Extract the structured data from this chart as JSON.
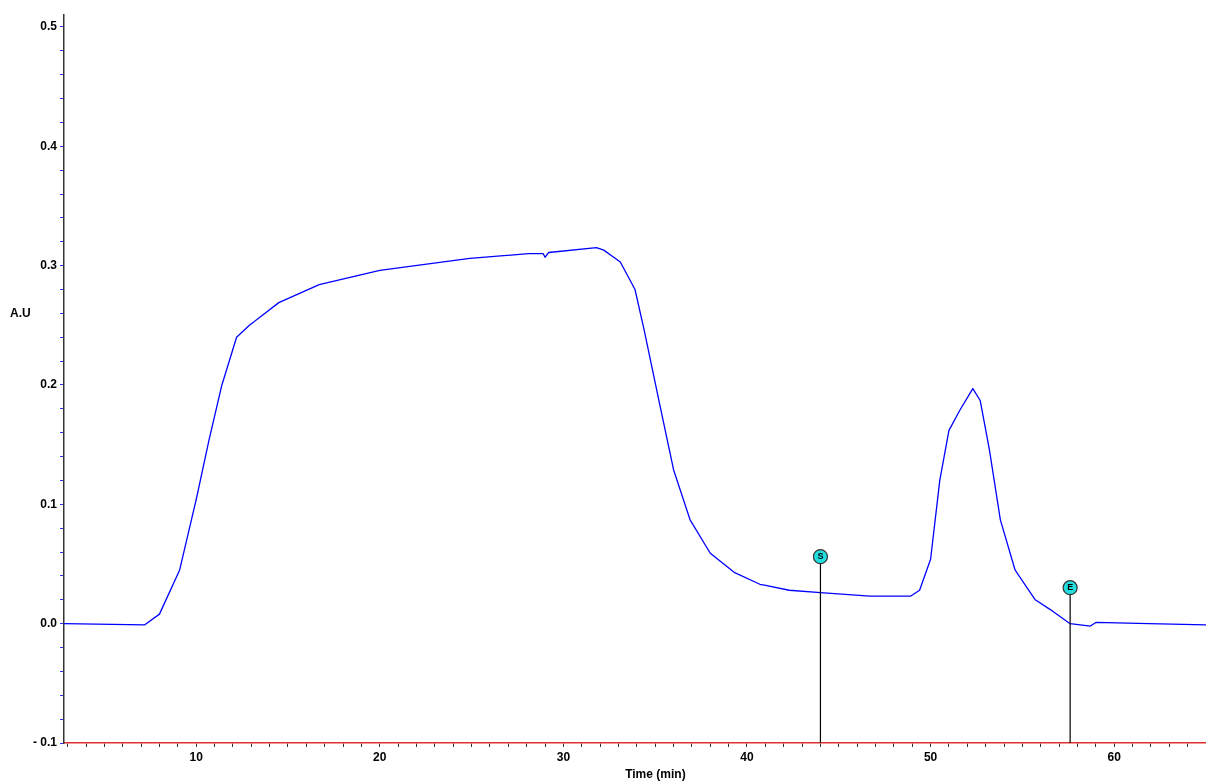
{
  "chart_data": {
    "type": "line",
    "xlabel": "Time (min)",
    "ylabel": "A.U",
    "xlim": [
      2.8,
      65
    ],
    "ylim": [
      -0.1,
      0.51
    ],
    "xticks": [
      {
        "value": 3,
        "label": null
      },
      {
        "value": 4,
        "label": null
      },
      {
        "value": 5,
        "label": null
      },
      {
        "value": 6,
        "label": null
      },
      {
        "value": 7,
        "label": null
      },
      {
        "value": 8,
        "label": null
      },
      {
        "value": 9,
        "label": null
      },
      10,
      {
        "value": 11,
        "label": null
      },
      {
        "value": 12,
        "label": null
      },
      {
        "value": 13,
        "label": null
      },
      {
        "value": 14,
        "label": null
      },
      {
        "value": 15,
        "label": null
      },
      {
        "value": 16,
        "label": null
      },
      {
        "value": 17,
        "label": null
      },
      {
        "value": 18,
        "label": null
      },
      {
        "value": 19,
        "label": null
      },
      20,
      {
        "value": 21,
        "label": null
      },
      {
        "value": 22,
        "label": null
      },
      {
        "value": 23,
        "label": null
      },
      {
        "value": 24,
        "label": null
      },
      {
        "value": 25,
        "label": null
      },
      {
        "value": 26,
        "label": null
      },
      {
        "value": 27,
        "label": null
      },
      {
        "value": 28,
        "label": null
      },
      {
        "value": 29,
        "label": null
      },
      30,
      {
        "value": 31,
        "label": null
      },
      {
        "value": 32,
        "label": null
      },
      {
        "value": 33,
        "label": null
      },
      {
        "value": 34,
        "label": null
      },
      {
        "value": 35,
        "label": null
      },
      {
        "value": 36,
        "label": null
      },
      {
        "value": 37,
        "label": null
      },
      {
        "value": 38,
        "label": null
      },
      {
        "value": 39,
        "label": null
      },
      40,
      {
        "value": 41,
        "label": null
      },
      {
        "value": 42,
        "label": null
      },
      {
        "value": 43,
        "label": null
      },
      {
        "value": 44,
        "label": null
      },
      {
        "value": 45,
        "label": null
      },
      {
        "value": 46,
        "label": null
      },
      {
        "value": 47,
        "label": null
      },
      {
        "value": 48,
        "label": null
      },
      {
        "value": 49,
        "label": null
      },
      50,
      {
        "value": 51,
        "label": null
      },
      {
        "value": 52,
        "label": null
      },
      {
        "value": 53,
        "label": null
      },
      {
        "value": 54,
        "label": null
      },
      {
        "value": 55,
        "label": null
      },
      {
        "value": 56,
        "label": null
      },
      {
        "value": 57,
        "label": null
      },
      {
        "value": 58,
        "label": null
      },
      {
        "value": 59,
        "label": null
      },
      60,
      {
        "value": 61,
        "label": null
      },
      {
        "value": 62,
        "label": null
      },
      {
        "value": 63,
        "label": null
      },
      {
        "value": 64,
        "label": null
      }
    ],
    "yticks": [
      {
        "value": -0.1,
        "label": "- 0.1"
      },
      {
        "value": -0.08,
        "label": null
      },
      {
        "value": -0.06,
        "label": null
      },
      {
        "value": -0.04,
        "label": null
      },
      {
        "value": -0.02,
        "label": null
      },
      {
        "value": 0,
        "label": "0.0"
      },
      {
        "value": 0.02,
        "label": null
      },
      {
        "value": 0.04,
        "label": null
      },
      {
        "value": 0.06,
        "label": null
      },
      {
        "value": 0.08,
        "label": null
      },
      0.1,
      {
        "value": 0.12,
        "label": null
      },
      {
        "value": 0.14,
        "label": null
      },
      {
        "value": 0.16,
        "label": null
      },
      {
        "value": 0.18,
        "label": null
      },
      0.2,
      {
        "value": 0.22,
        "label": null
      },
      {
        "value": 0.24,
        "label": null
      },
      {
        "value": 0.26,
        "label": null
      },
      {
        "value": 0.28,
        "label": null
      },
      0.3,
      {
        "value": 0.32,
        "label": null
      },
      {
        "value": 0.34,
        "label": null
      },
      {
        "value": 0.36,
        "label": null
      },
      {
        "value": 0.38,
        "label": null
      },
      0.4,
      {
        "value": 0.42,
        "label": null
      },
      {
        "value": 0.44,
        "label": null
      },
      {
        "value": 0.46,
        "label": null
      },
      {
        "value": 0.48,
        "label": null
      },
      0.5
    ],
    "grid": false,
    "legend": false,
    "marker": "none",
    "line_style": "solid",
    "x": [
      2.8,
      7.2,
      8.0,
      9.1,
      10.0,
      10.7,
      11.4,
      12.2,
      12.9,
      14.5,
      16.7,
      20.0,
      24.9,
      28.1,
      28.9,
      29.0,
      29.2,
      31.8,
      32.2,
      33.1,
      33.9,
      34.4,
      35.2,
      36.0,
      36.9,
      38.0,
      39.3,
      40.7,
      42.3,
      44.0,
      46.7,
      48.9,
      49.4,
      50.0,
      50.5,
      51.0,
      51.6,
      52.3,
      52.7,
      53.2,
      53.8,
      54.6,
      55.7,
      56.5,
      57.6,
      58.7,
      59.0,
      61.9,
      65.0
    ],
    "series": [
      {
        "color": "#0000ff",
        "values": [
          0.0,
          -0.001,
          0.008,
          0.045,
          0.104,
          0.154,
          0.2,
          0.24,
          0.25,
          0.269,
          0.284,
          0.296,
          0.306,
          0.31,
          0.31,
          0.307,
          0.311,
          0.315,
          0.313,
          0.303,
          0.28,
          0.246,
          0.187,
          0.129,
          0.087,
          0.059,
          0.043,
          0.033,
          0.028,
          0.026,
          0.023,
          0.023,
          0.028,
          0.054,
          0.12,
          0.162,
          0.179,
          0.197,
          0.187,
          0.146,
          0.087,
          0.045,
          0.02,
          0.012,
          0.0,
          -0.002,
          0.001,
          0.0,
          -0.001
        ]
      }
    ],
    "ref_lines": [
      {
        "axis": "x",
        "value": 44.0,
        "label": "S",
        "color": "#000000"
      },
      {
        "axis": "x",
        "value": 57.6,
        "label": "E",
        "color": "#000000"
      }
    ]
  }
}
